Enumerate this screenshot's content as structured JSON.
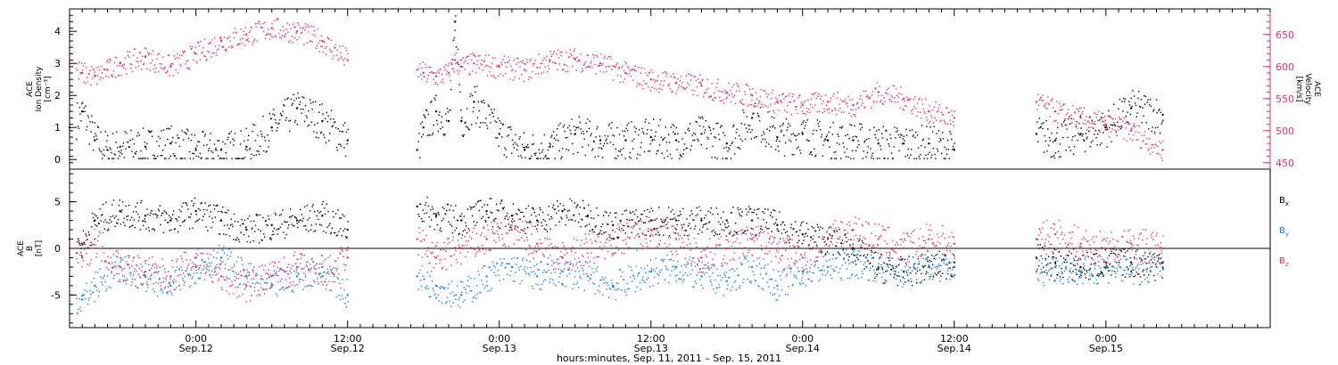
{
  "colors": {
    "density": "#000000",
    "velocity": "#e0306a",
    "bx": "#000000",
    "by": "#1a7fd6",
    "bz": "#e0306a"
  },
  "chart_data": [
    {
      "type": "scatter",
      "panel": "top",
      "left_axis_label_lines": [
        "ACE",
        "Ion Density",
        "[cm⁻³]"
      ],
      "right_axis_label_lines": [
        "ACE",
        "Velocity",
        "[km/s]"
      ],
      "left_ylim": [
        -0.3,
        4.7
      ],
      "left_ticks": [
        "0",
        "1",
        "2",
        "3",
        "4"
      ],
      "right_ylim": [
        440,
        690
      ],
      "right_ticks": [
        "450",
        "500",
        "550",
        "600",
        "650"
      ],
      "x_hours_range": [
        -22,
        73
      ],
      "gaps": [
        [
          0.0,
          5.5
        ],
        [
          48.0,
          54.5
        ]
      ],
      "data_end_hours": 64.5,
      "series": [
        {
          "key": "density",
          "x": [
            -22,
            -21,
            -20,
            -19,
            -18,
            -16,
            -14,
            -12,
            -10,
            -8,
            -6,
            -4,
            -2,
            0,
            5.5,
            6,
            7,
            8,
            8.5,
            9,
            10,
            12,
            14,
            16,
            18,
            20,
            22,
            24,
            26,
            28,
            30,
            32,
            34,
            36,
            38,
            40,
            42,
            44,
            46,
            48,
            54.5,
            56,
            58,
            60,
            62,
            64.5
          ],
          "y": [
            1.0,
            1.5,
            0.6,
            0.3,
            0.4,
            0.4,
            0.5,
            0.3,
            0.3,
            0.4,
            1.0,
            1.6,
            1.2,
            0.6,
            0.3,
            1.0,
            1.5,
            1.2,
            4.3,
            1.2,
            1.8,
            0.8,
            0.3,
            0.4,
            0.8,
            0.6,
            0.6,
            0.7,
            0.6,
            0.8,
            0.5,
            1.3,
            0.7,
            0.8,
            0.6,
            0.6,
            0.5,
            0.5,
            0.5,
            0.3,
            0.8,
            0.6,
            0.8,
            1.0,
            1.6,
            1.4
          ]
        },
        {
          "key": "velocity",
          "x": [
            -22,
            -21,
            -20,
            -19,
            -18,
            -16,
            -14,
            -12,
            -10,
            -8,
            -6,
            -4,
            -2,
            0,
            5.5,
            6,
            7,
            8,
            8.5,
            9,
            10,
            12,
            14,
            16,
            18,
            20,
            22,
            24,
            26,
            28,
            30,
            32,
            34,
            36,
            38,
            40,
            42,
            44,
            46,
            48,
            54.5,
            56,
            58,
            60,
            62,
            64.5
          ],
          "y": [
            600,
            590,
            585,
            595,
            605,
            615,
            600,
            620,
            640,
            650,
            660,
            655,
            640,
            610,
            595,
            590,
            585,
            590,
            610,
            600,
            605,
            600,
            595,
            610,
            612,
            605,
            590,
            580,
            575,
            570,
            560,
            555,
            545,
            540,
            545,
            540,
            560,
            550,
            530,
            520,
            545,
            530,
            520,
            510,
            500,
            470
          ]
        }
      ]
    },
    {
      "type": "scatter",
      "panel": "bottom",
      "left_axis_label_lines": [
        "ACE",
        "B",
        "[nT]"
      ],
      "left_ylim": [
        -8.5,
        8.5
      ],
      "left_ticks": [
        "-5",
        "0",
        "5"
      ],
      "legend": [
        "Bx",
        "By",
        "Bz"
      ],
      "legend_placement": "right",
      "x_hours_range": [
        -22,
        73
      ],
      "series": [
        {
          "key": "bx",
          "x": [
            -22,
            -21,
            -20,
            -18,
            -16,
            -14,
            -12,
            -10,
            -8,
            -6,
            -4,
            -2,
            0,
            5.5,
            7,
            9,
            11,
            13,
            15,
            17,
            19,
            21,
            24,
            26,
            28,
            30,
            32,
            34,
            36,
            38,
            40,
            42,
            44,
            46,
            48,
            54.5,
            56,
            58,
            60,
            62,
            64.5
          ],
          "y": [
            1.0,
            0.5,
            3.0,
            4.0,
            3.5,
            3.0,
            4.0,
            3.0,
            2.0,
            2.5,
            3.0,
            3.5,
            2.0,
            4.5,
            3.5,
            3.0,
            4.0,
            3.5,
            3.0,
            4.0,
            3.5,
            2.5,
            3.0,
            3.0,
            3.0,
            3.0,
            3.0,
            2.5,
            1.5,
            1.0,
            0.0,
            -2.0,
            -2.5,
            -2.0,
            -1.5,
            -1.0,
            -1.5,
            -2.0,
            -1.5,
            -1.5,
            -1.5
          ]
        },
        {
          "key": "by",
          "x": [
            -22,
            -21,
            -20,
            -18,
            -16,
            -14,
            -12,
            -10,
            -8,
            -6,
            -4,
            -2,
            0,
            5.5,
            7,
            9,
            11,
            13,
            15,
            17,
            19,
            21,
            24,
            26,
            28,
            30,
            32,
            34,
            36,
            38,
            40,
            42,
            44,
            46,
            48,
            54.5,
            56,
            58,
            60,
            62,
            64.5
          ],
          "y": [
            -6.0,
            -5.5,
            -4.0,
            -2.0,
            -3.0,
            -4.0,
            -2.0,
            -1.0,
            -3.0,
            -4.0,
            -3.0,
            -2.0,
            -5.0,
            -3.0,
            -4.0,
            -5.0,
            -3.0,
            -2.0,
            -3.0,
            -2.5,
            -3.0,
            -4.0,
            -2.5,
            -2.0,
            -3.0,
            -3.5,
            -2.0,
            -4.0,
            -2.5,
            -2.0,
            -1.5,
            -2.0,
            -2.5,
            -2.0,
            -2.0,
            -2.5,
            -2.0,
            -2.5,
            -2.0,
            -2.5,
            -2.0
          ]
        },
        {
          "key": "bz",
          "x": [
            -22,
            -21,
            -20,
            -18,
            -16,
            -14,
            -12,
            -10,
            -8,
            -6,
            -4,
            -2,
            0,
            5.5,
            7,
            9,
            11,
            13,
            15,
            17,
            19,
            21,
            24,
            26,
            28,
            30,
            32,
            34,
            36,
            38,
            40,
            42,
            44,
            46,
            48,
            54.5,
            56,
            58,
            60,
            62,
            64.5
          ],
          "y": [
            0.0,
            -1.0,
            1.0,
            -2.0,
            -2.5,
            -3.0,
            -1.0,
            -3.0,
            -4.0,
            -3.0,
            -2.0,
            -3.0,
            -1.0,
            1.0,
            -1.0,
            0.0,
            1.0,
            2.0,
            0.5,
            -1.0,
            0.0,
            1.0,
            2.0,
            1.0,
            -1.0,
            0.0,
            1.0,
            0.0,
            -1.0,
            1.0,
            2.0,
            1.0,
            0.0,
            1.0,
            0.5,
            1.0,
            1.5,
            0.5,
            0.0,
            0.5,
            0.0
          ]
        }
      ]
    }
  ],
  "x_axis": {
    "ticks": [
      {
        "hours": -12,
        "time": "0:00",
        "date": "Sep.12"
      },
      {
        "hours": 0,
        "time": "12:00",
        "date": "Sep.12"
      },
      {
        "hours": 12,
        "time": "0:00",
        "date": "Sep.13"
      },
      {
        "hours": 24,
        "time": "12:00",
        "date": "Sep.13"
      },
      {
        "hours": 36,
        "time": "0:00",
        "date": "Sep.14"
      },
      {
        "hours": 48,
        "time": "12:00",
        "date": "Sep.14"
      },
      {
        "hours": 60,
        "time": "0:00",
        "date": "Sep.15"
      }
    ],
    "xlabel": "hours:minutes, Sep. 11, 2011 – Sep. 15, 2011"
  }
}
